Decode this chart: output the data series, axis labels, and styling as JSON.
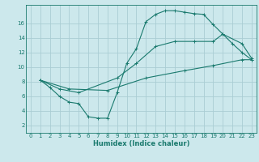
{
  "xlabel": "Humidex (Indice chaleur)",
  "background_color": "#cce8ec",
  "grid_color": "#aacdd4",
  "line_color": "#1a7a6e",
  "xlim": [
    -0.5,
    23.5
  ],
  "ylim": [
    1,
    18.5
  ],
  "xticks": [
    0,
    1,
    2,
    3,
    4,
    5,
    6,
    7,
    8,
    9,
    10,
    11,
    12,
    13,
    14,
    15,
    16,
    17,
    18,
    19,
    20,
    21,
    22,
    23
  ],
  "yticks": [
    2,
    4,
    6,
    8,
    10,
    12,
    14,
    16
  ],
  "series1_x": [
    1,
    2,
    3,
    4,
    5,
    6,
    7,
    8,
    9,
    10,
    11,
    12,
    13,
    14,
    15,
    16,
    17,
    18,
    19,
    20,
    21,
    22,
    23
  ],
  "series1_y": [
    8.2,
    7.2,
    6.0,
    5.2,
    5.0,
    3.2,
    3.0,
    3.0,
    6.5,
    10.5,
    12.5,
    16.2,
    17.2,
    17.7,
    17.7,
    17.5,
    17.3,
    17.2,
    15.8,
    14.5,
    13.2,
    12.0,
    11.0
  ],
  "series2_x": [
    1,
    3,
    5,
    9,
    11,
    13,
    15,
    17,
    19,
    20,
    22,
    23
  ],
  "series2_y": [
    8.2,
    7.0,
    6.5,
    8.5,
    10.5,
    12.8,
    13.5,
    13.5,
    13.5,
    14.5,
    13.2,
    11.2
  ],
  "series3_x": [
    1,
    4,
    8,
    12,
    16,
    19,
    22,
    23
  ],
  "series3_y": [
    8.2,
    7.0,
    6.8,
    8.5,
    9.5,
    10.2,
    11.0,
    11.0
  ]
}
